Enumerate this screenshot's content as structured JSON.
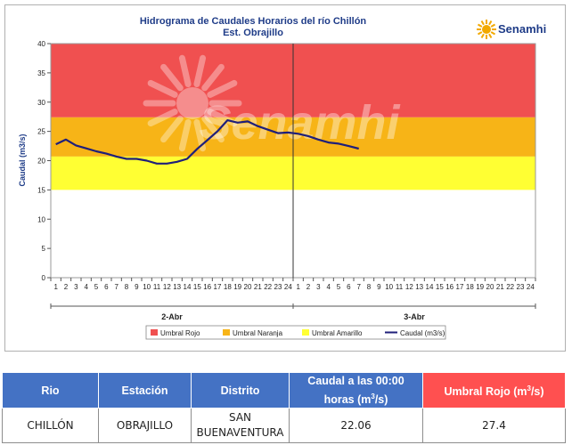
{
  "chart_data": {
    "type": "line",
    "title": "Hidrograma de Caudales Horarios del río Chillón",
    "subtitle": "Est. Obrajillo",
    "logo": "Senamhi",
    "watermark": "Senamhi",
    "ylabel": "Caudal  (m3/s)",
    "ylim": [
      0,
      40
    ],
    "yticks": [
      "0",
      "5",
      "10",
      "15",
      "20",
      "25",
      "30",
      "35",
      "40"
    ],
    "x_ticks": [
      "1",
      "2",
      "3",
      "4",
      "5",
      "6",
      "7",
      "8",
      "9",
      "10",
      "11",
      "12",
      "13",
      "14",
      "15",
      "16",
      "17",
      "18",
      "19",
      "20",
      "21",
      "22",
      "23",
      "24",
      "1",
      "2",
      "3",
      "4",
      "5",
      "6",
      "7",
      "8",
      "9",
      "10",
      "11",
      "12",
      "13",
      "14",
      "15",
      "16",
      "17",
      "18",
      "19",
      "20",
      "21",
      "22",
      "23",
      "24"
    ],
    "day_labels": [
      "2-Abr",
      "3-Abr"
    ],
    "bands": [
      {
        "name": "Umbral Rojo",
        "from": 27.4,
        "to": 40,
        "color": "#f05050"
      },
      {
        "name": "Umbral Naranja",
        "from": 20.7,
        "to": 27.4,
        "color": "#f7b417"
      },
      {
        "name": "Umbral Amarillo",
        "from": 15,
        "to": 20.7,
        "color": "#ffff33"
      }
    ],
    "series": [
      {
        "name": "Caudal (m3/s)",
        "color": "#1f1f7a",
        "x": [
          1,
          2,
          3,
          4,
          5,
          6,
          7,
          8,
          9,
          10,
          11,
          12,
          13,
          14,
          15,
          16,
          17,
          18,
          19,
          20,
          21,
          22,
          23,
          24,
          25,
          26,
          27,
          28,
          29,
          30,
          31
        ],
        "values": [
          22.8,
          23.6,
          22.6,
          22.1,
          21.6,
          21.2,
          20.7,
          20.3,
          20.3,
          20.0,
          19.5,
          19.5,
          19.8,
          20.3,
          22.0,
          23.5,
          25.0,
          26.9,
          26.5,
          26.7,
          25.9,
          25.3,
          24.7,
          24.8,
          24.6,
          24.2,
          23.6,
          23.1,
          22.9,
          22.5,
          22.06
        ]
      }
    ],
    "legend": {
      "position": "bottom",
      "items": [
        {
          "label": "Umbral Rojo",
          "color": "#f05050",
          "kind": "box"
        },
        {
          "label": "Umbral Naranja",
          "color": "#f7b417",
          "kind": "box"
        },
        {
          "label": "Umbral Amarillo",
          "color": "#ffff33",
          "kind": "box"
        },
        {
          "label": "Caudal (m3/s)",
          "color": "#1f1f7a",
          "kind": "line"
        }
      ]
    }
  },
  "table": {
    "headers": {
      "rio": "Rio",
      "estacion": "Estación",
      "distrito": "Distrito",
      "caudal_pre": "Caudal a las 00:00 horas (m",
      "caudal_sup": "3",
      "caudal_post": "/s)",
      "umbral_pre": "Umbral Rojo (m",
      "umbral_sup": "3",
      "umbral_post": "/s)"
    },
    "row": {
      "rio": "CHILLÓN",
      "estacion": "OBRAJILLO",
      "distrito": "SAN BUENAVENTURA",
      "caudal": "22.06",
      "umbral": "27.4"
    }
  }
}
